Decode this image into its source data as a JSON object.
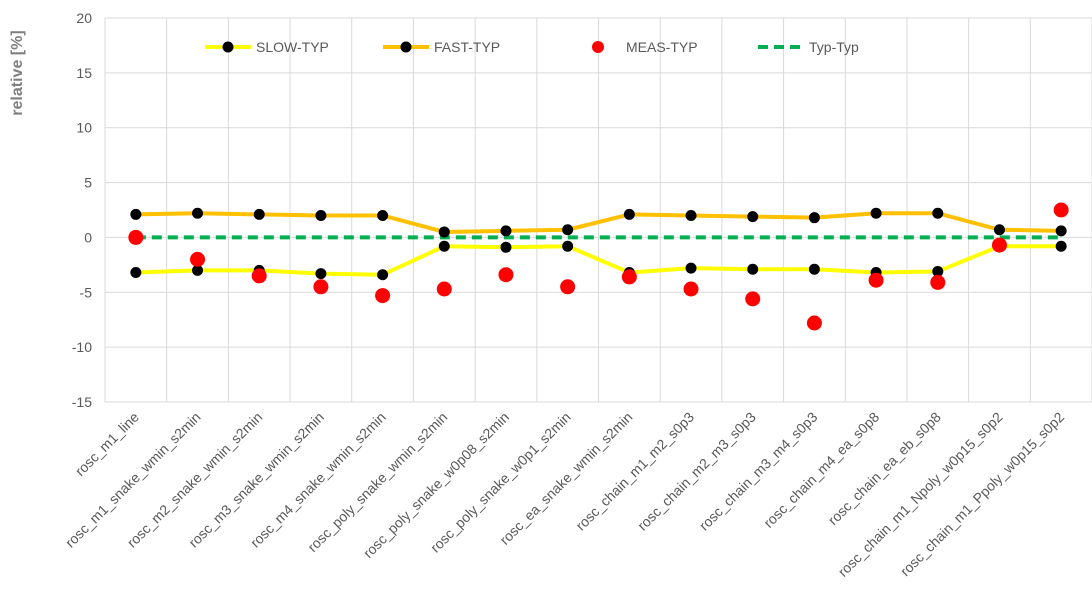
{
  "chart_data": {
    "type": "line",
    "ylabel": "relative [%]",
    "ylim": [
      -15,
      20
    ],
    "yticks": [
      -15,
      -10,
      -5,
      0,
      5,
      10,
      15,
      20
    ],
    "grid": true,
    "legend_position": "top",
    "categories": [
      "rosc_m1_line",
      "rosc_m1_snake_wmin_s2min",
      "rosc_m2_snake_wmin_s2min",
      "rosc_m3_snake_wmin_s2min",
      "rosc_m4_snake_wmin_s2min",
      "rosc_poly_snake_wmin_s2min",
      "rosc_poly_snake_w0p08_s2min",
      "rosc_poly_snake_w0p1_s2min",
      "rosc_ea_snake_wmin_s2min",
      "rosc_chain_m1_m2_s0p3",
      "rosc_chain_m2_m3_s0p3",
      "rosc_chain_m3_m4_s0p3",
      "rosc_chain_m4_ea_s0p8",
      "rosc_chain_ea_eb_s0p8",
      "rosc_chain_m1_Npoly_w0p15_s0p2",
      "rosc_chain_m1_Ppoly_w0p15_s0p2"
    ],
    "series": [
      {
        "name": "SLOW-TYP",
        "style": "line-marker",
        "line_color": "#ffff00",
        "marker_color": "#000000",
        "values": [
          -3.2,
          -3.0,
          -3.0,
          -3.3,
          -3.4,
          -0.8,
          -0.9,
          -0.8,
          -3.2,
          -2.8,
          -2.9,
          -2.9,
          -3.2,
          -3.1,
          -0.8,
          -0.8
        ]
      },
      {
        "name": "FAST-TYP",
        "style": "line-marker",
        "line_color": "#ffc000",
        "marker_color": "#000000",
        "values": [
          2.1,
          2.2,
          2.1,
          2.0,
          2.0,
          0.5,
          0.6,
          0.7,
          2.1,
          2.0,
          1.9,
          1.8,
          2.2,
          2.2,
          0.7,
          0.6
        ]
      },
      {
        "name": "MEAS-TYP",
        "style": "marker",
        "marker_color": "#ff0000",
        "values": [
          0.0,
          -2.0,
          -3.5,
          -4.5,
          -5.3,
          -4.7,
          -3.4,
          -4.5,
          -3.6,
          -4.7,
          -5.6,
          -7.8,
          -3.9,
          -4.1,
          -0.7,
          2.5
        ]
      },
      {
        "name": "Typ-Typ",
        "style": "dashed-line",
        "line_color": "#00b050",
        "values": [
          0,
          0,
          0,
          0,
          0,
          0,
          0,
          0,
          0,
          0,
          0,
          0,
          0,
          0,
          0,
          0
        ]
      }
    ]
  }
}
